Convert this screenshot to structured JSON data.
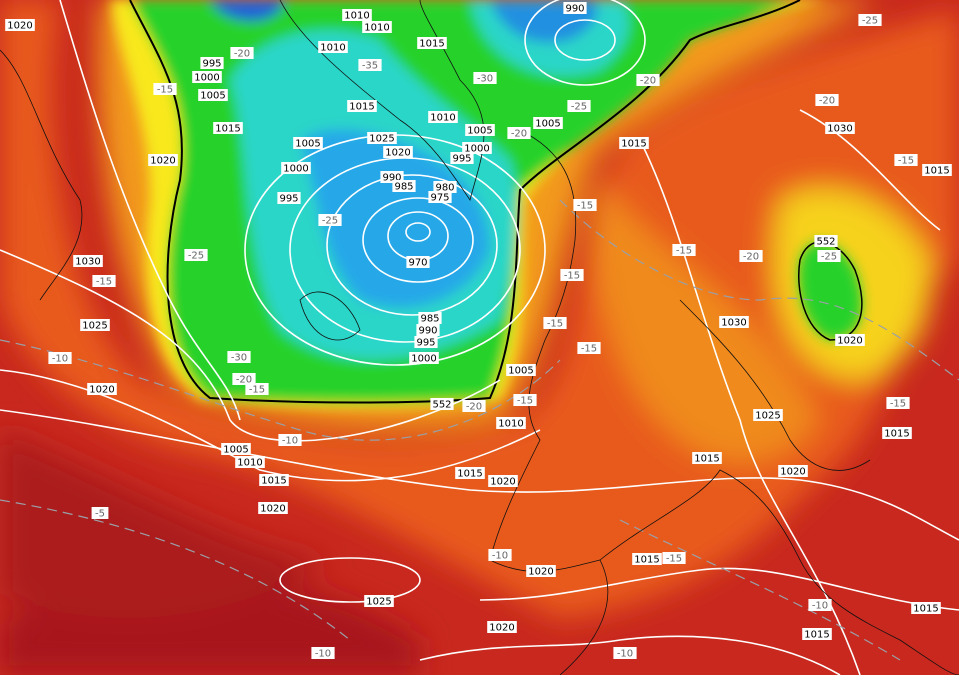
{
  "pressure_labels": [
    "1020",
    "1010",
    "1010",
    "1010",
    "1015",
    "995",
    "1000",
    "1005",
    "1015",
    "1020",
    "1015",
    "1010",
    "1005",
    "1005",
    "1025",
    "1020",
    "1000",
    "995",
    "1005",
    "1000",
    "995",
    "990",
    "985",
    "980",
    "975",
    "970",
    "990",
    "1015",
    "1030",
    "1015",
    "1030",
    "1025",
    "1020",
    "985",
    "990",
    "995",
    "1000",
    "1005",
    "1010",
    "1030",
    "1020",
    "1025",
    "1015",
    "1015",
    "1020",
    "1005",
    "1010",
    "1015",
    "1020",
    "1015",
    "1020",
    "1025",
    "1020",
    "1015",
    "1020",
    "1015",
    "1015"
  ],
  "temperature_labels": [
    "-25",
    "-20",
    "-35",
    "-30",
    "-20",
    "-15",
    "-25",
    "-20",
    "-20",
    "-15",
    "-25",
    "-25",
    "-15",
    "-15",
    "-15",
    "-20",
    "-15",
    "-25",
    "-15",
    "-15",
    "-10",
    "-30",
    "-20",
    "-15",
    "-20",
    "-15",
    "-10",
    "-15",
    "-5",
    "-10",
    "-15",
    "-10",
    "-10",
    "-10"
  ],
  "thickness_labels": [
    "552",
    "552"
  ]
}
